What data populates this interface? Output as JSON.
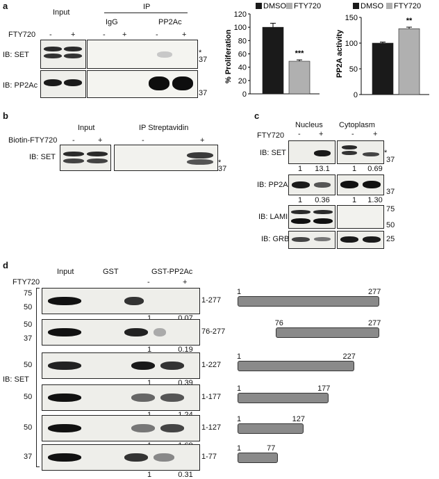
{
  "panels": {
    "a": "a",
    "b": "b",
    "c": "c",
    "d": "d"
  },
  "panel_a": {
    "input": "Input",
    "ip": "IP",
    "igg": "IgG",
    "pp2ac": "PP2Ac",
    "fty": "FTY720",
    "minus": "-",
    "plus": "+",
    "ib_set": "IB: SET",
    "ib_pp2ac": "IB: PP2Ac",
    "mw1": "37",
    "mw2": "37",
    "star": "*"
  },
  "panel_b": {
    "input": "Input",
    "ip": "IP Streptavidin",
    "biotin": "Biotin-FTY720",
    "minus": "-",
    "plus": "+",
    "ib_set": "IB: SET",
    "mw": "37",
    "star": "*"
  },
  "panel_c": {
    "nucleus": "Nucleus",
    "cytoplasm": "Cytoplasm",
    "fty": "FTY720",
    "minus": "-",
    "plus": "+",
    "ib_set": "IB: SET",
    "ib_pp2ac": "IB: PP2Ac",
    "ib_lamin": "IB: LAMIN",
    "ib_grb2": "IB: GRB2",
    "set_vals": [
      "1",
      "13.1",
      "1",
      "0.69"
    ],
    "pp2ac_vals": [
      "1",
      "0.36",
      "1",
      "1.30"
    ],
    "mw_set": "37",
    "mw_pp2ac": "37",
    "mw_lamin_hi": "75",
    "mw_lamin_lo": "50",
    "mw_grb2": "25",
    "star": "*"
  },
  "panel_d": {
    "input": "Input",
    "gst": "GST",
    "gstpp2ac": "GST-PP2Ac",
    "fty": "FTY720",
    "minus": "-",
    "plus": "+",
    "ib_set": "IB: SET",
    "rows": [
      {
        "mw": [
          "75",
          "50"
        ],
        "label": "1-277",
        "vals": [
          "1",
          "0.07"
        ],
        "start": "1",
        "end": "277"
      },
      {
        "mw": [
          "50",
          "37"
        ],
        "label": "76-277",
        "vals": [
          "1",
          "0.19"
        ],
        "start": "76",
        "end": "277"
      },
      {
        "mw": [
          "50"
        ],
        "label": "1-227",
        "vals": [
          "1",
          "0.39"
        ],
        "start": "1",
        "end": "227"
      },
      {
        "mw": [
          "50"
        ],
        "label": "1-177",
        "vals": [
          "1",
          "1.24"
        ],
        "start": "1",
        "end": "177"
      },
      {
        "mw": [
          "50"
        ],
        "label": "1-127",
        "vals": [
          "1",
          "1.69"
        ],
        "start": "1",
        "end": "127"
      },
      {
        "mw": [
          "37"
        ],
        "label": "1-77",
        "vals": [
          "1",
          "0.31"
        ],
        "start": "1",
        "end": "77"
      }
    ]
  },
  "chart_data": [
    {
      "type": "bar",
      "legend": [
        "DMSO",
        "FTY720"
      ],
      "ylabel": "% Proliferation",
      "ylim": [
        0,
        120
      ],
      "yticks": [
        "0",
        "20",
        "40",
        "60",
        "80",
        "100",
        "120"
      ],
      "values": [
        100,
        49
      ],
      "errors": [
        6,
        2
      ],
      "significance": "***",
      "colors": [
        "#1a1a1a",
        "#b0b0b0"
      ]
    },
    {
      "type": "bar",
      "legend": [
        "DMSO",
        "FTY720"
      ],
      "ylabel": "PP2A activity",
      "ylim": [
        0,
        150
      ],
      "yticks": [
        "0",
        "50",
        "100",
        "150"
      ],
      "values": [
        100,
        128
      ],
      "errors": [
        2,
        3
      ],
      "significance": "**",
      "colors": [
        "#1a1a1a",
        "#b0b0b0"
      ]
    }
  ]
}
